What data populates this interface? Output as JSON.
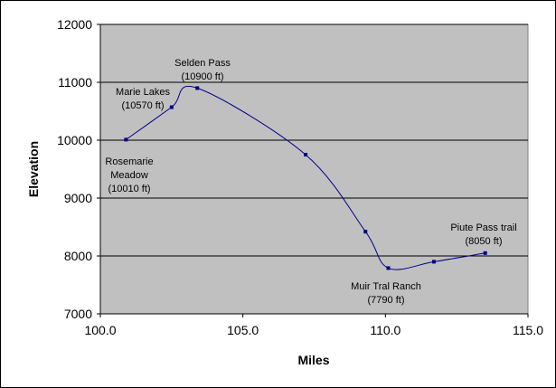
{
  "chart_data": {
    "type": "line",
    "title": "",
    "xlabel": "Miles",
    "ylabel": "Elevation",
    "xlim": [
      100.0,
      115.0
    ],
    "ylim": [
      7000,
      12000
    ],
    "xticks": [
      "100.0",
      "105.0",
      "110.0",
      "115.0"
    ],
    "yticks": [
      "7000",
      "8000",
      "9000",
      "10000",
      "11000",
      "12000"
    ],
    "grid": "horizontal",
    "legend": "none",
    "colors": {
      "plot_bg": "#c0c0c0",
      "line": "#00008b",
      "marker": "#000080",
      "grid": "#000000"
    },
    "series": [
      {
        "x": [
          100.9,
          102.5,
          103.4,
          107.2,
          109.3,
          110.1,
          111.7,
          113.5
        ],
        "y": [
          10010,
          10570,
          10900,
          9750,
          8420,
          7790,
          7900,
          8050
        ]
      }
    ],
    "annotations": [
      {
        "lines": [
          "Selden Pass",
          "(10900 ft)"
        ]
      },
      {
        "lines": [
          "Marie Lakes",
          "(10570 ft)"
        ]
      },
      {
        "lines": [
          "Rosemarie",
          "Meadow",
          "(10010 ft)"
        ]
      },
      {
        "lines": [
          "Piute Pass trail",
          "(8050 ft)"
        ]
      },
      {
        "lines": [
          "Muir Tral Ranch",
          "(7790 ft)"
        ]
      }
    ]
  }
}
